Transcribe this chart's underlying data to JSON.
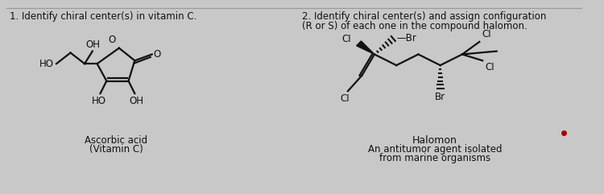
{
  "bg_color": "#c8c8c8",
  "text_color": "#111111",
  "line_color": "#111111",
  "title1": "1. Identify chiral center(s) in vitamin C.",
  "title2_line1": "2. Identify chiral center(s) and assign configuration",
  "title2_line2": "(R or S) of each one in the compound halomon.",
  "label1": "Ascorbic acid",
  "label1b": "(Vitamin C)",
  "label2": "Halomon",
  "label2b": "An antitumor agent isolated",
  "label2c": "from marine organisms",
  "divider_color": "#999999"
}
